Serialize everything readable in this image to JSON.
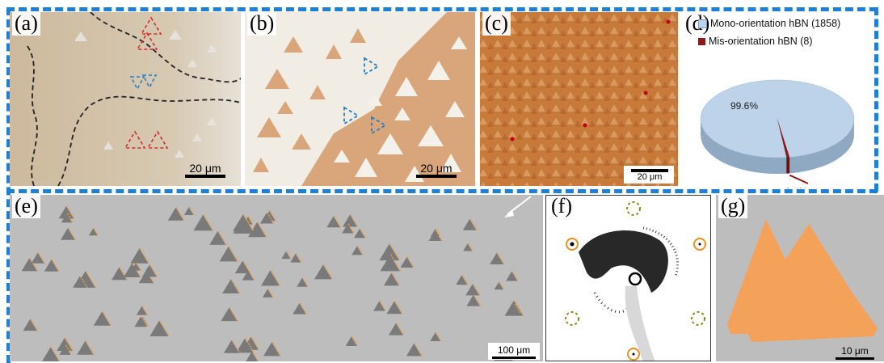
{
  "panels": {
    "a": {
      "label": "(a)",
      "scale": "20 μm"
    },
    "b": {
      "label": "(b)",
      "scale": "20 μm"
    },
    "c": {
      "label": "(c)",
      "scale": "20 μm"
    },
    "d": {
      "label": "(d)"
    },
    "e": {
      "label": "(e)",
      "scale": "100 μm"
    },
    "f": {
      "label": "(f)"
    },
    "g": {
      "label": "(g)",
      "scale": "10 μm"
    }
  },
  "chart_data": {
    "type": "pie",
    "series": [
      {
        "name": "Mono-orientation hBN (1858)",
        "value": 99.6,
        "label": "99.6%",
        "color": "#bcd3ea"
      },
      {
        "name": "Mis-orientation hBN (8)",
        "value": 0.4,
        "label": "0.4%",
        "color": "#8b1a1a"
      }
    ],
    "legend_position": "top"
  },
  "colors": {
    "border_dash": "#1f7fd4",
    "red_marker": "#d42a2a",
    "blue_marker": "#2a7fc0",
    "orange_edge": "#f0a040",
    "orange_domain": "#f4a25a"
  }
}
